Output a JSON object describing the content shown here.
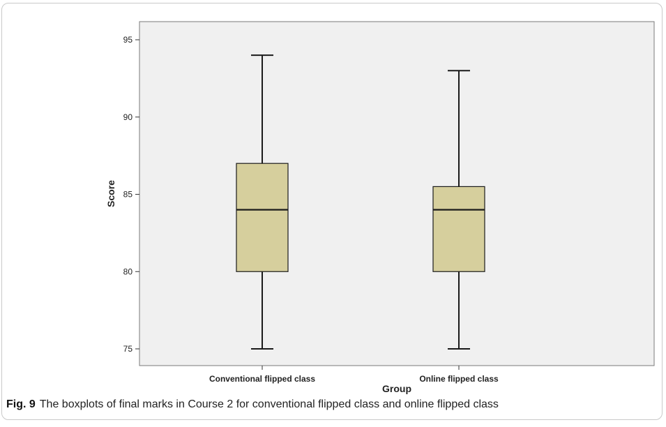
{
  "caption": {
    "figure_label": "Fig. 9",
    "text": "The boxplots of final marks in Course 2 for conventional flipped class and online flipped class"
  },
  "chart_data": {
    "type": "boxplot",
    "title": "",
    "xlabel": "Group",
    "ylabel": "Score",
    "ylim": [
      74,
      96
    ],
    "yticks": [
      75,
      80,
      85,
      90,
      95
    ],
    "grid": false,
    "categories": [
      "Conventional flipped class",
      "Online flipped class"
    ],
    "boxes": [
      {
        "category": "Conventional flipped class",
        "min": 75,
        "q1": 80,
        "median": 84,
        "q3": 87,
        "max": 94
      },
      {
        "category": "Online flipped class",
        "min": 75,
        "q1": 80,
        "median": 84,
        "q3": 85.5,
        "max": 93
      }
    ],
    "colors": {
      "box_fill": "#d6cf9d",
      "plot_background": "#f0f0f0",
      "line": "#1a1a1a"
    }
  }
}
